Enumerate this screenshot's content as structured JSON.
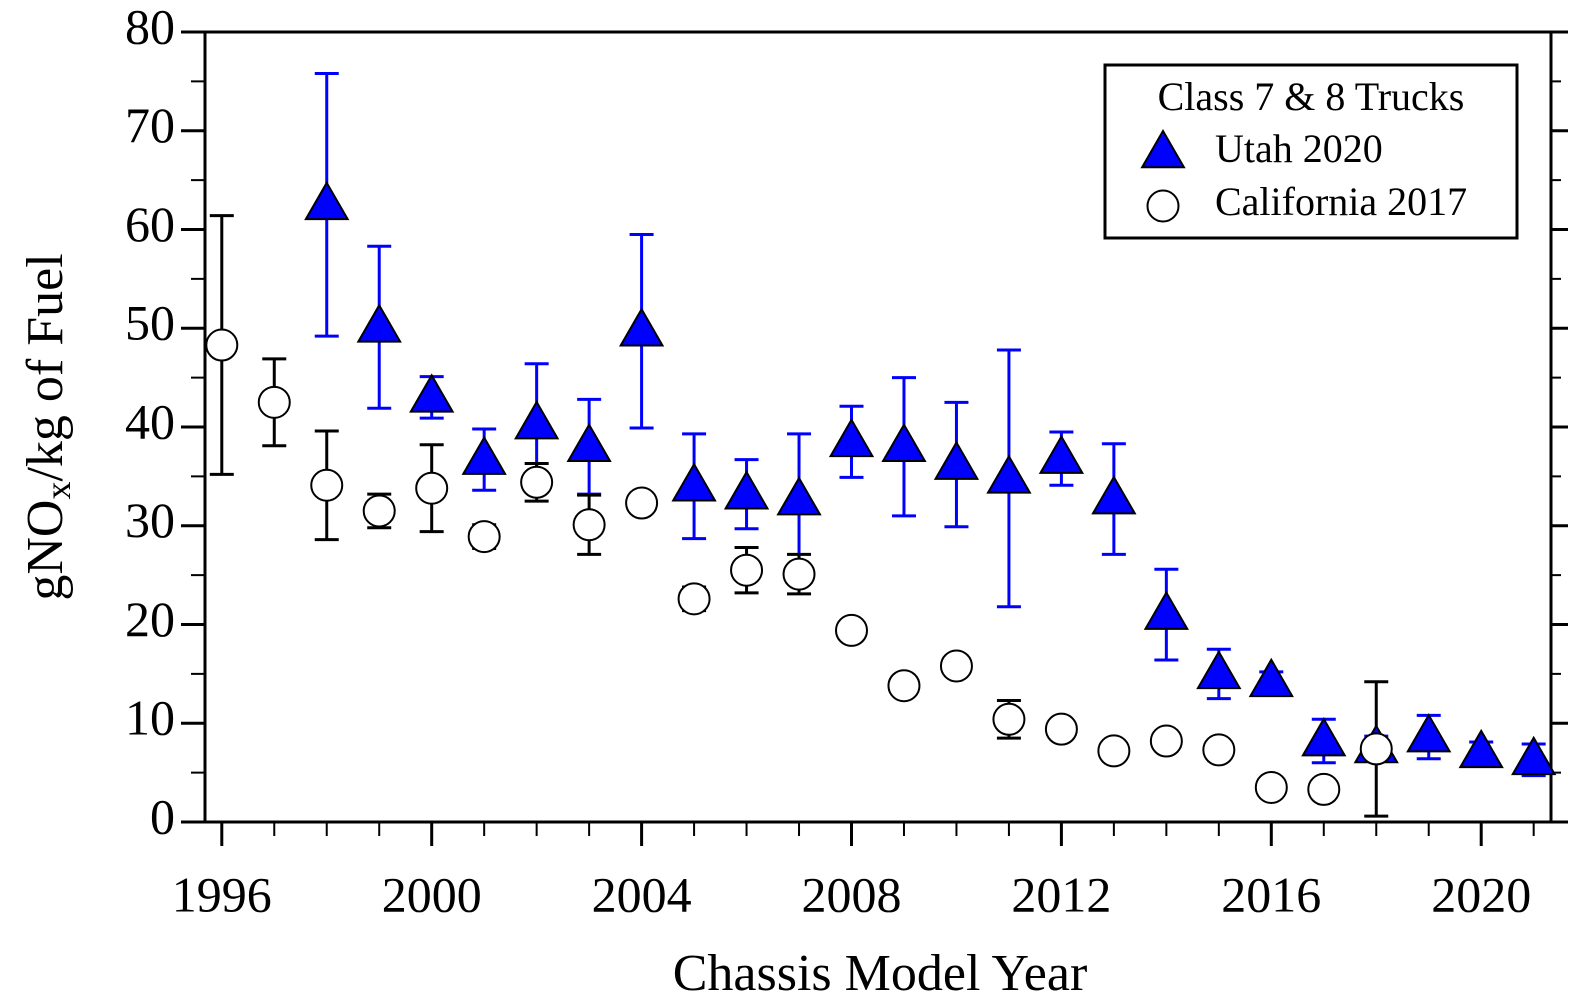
{
  "chart_data": {
    "type": "scatter",
    "x_label": "Chassis Model Year",
    "y_label": "gNOx/kg of Fuel",
    "legend_title": "Class 7 & 8 Trucks",
    "legend": "upper right",
    "xlim": [
      1995.68,
      2021.33
    ],
    "ylim": [
      0,
      80
    ],
    "xticks": [
      1996,
      2000,
      2004,
      2008,
      2012,
      2016,
      2020
    ],
    "xminorticks": [
      1997,
      1998,
      1999,
      2001,
      2002,
      2003,
      2005,
      2006,
      2007,
      2009,
      2010,
      2011,
      2013,
      2014,
      2015,
      2017,
      2018,
      2019,
      2021
    ],
    "yticks": [
      0,
      10,
      20,
      30,
      40,
      50,
      60,
      70,
      80
    ],
    "yminorticks": [
      5,
      15,
      25,
      35,
      45,
      55,
      65,
      75
    ],
    "series": [
      {
        "name": "Utah 2020",
        "marker": "triangle",
        "color": "#0000ff",
        "error_color": "#0000ff",
        "x": [
          1998,
          1999,
          2000,
          2001,
          2002,
          2003,
          2004,
          2005,
          2006,
          2007,
          2008,
          2009,
          2010,
          2011,
          2012,
          2013,
          2014,
          2015,
          2016,
          2017,
          2018,
          2019,
          2020,
          2021
        ],
        "values": [
          62.5,
          50.1,
          43,
          36.7,
          40.3,
          38,
          49.7,
          34,
          33.2,
          32.6,
          38.5,
          38,
          36.2,
          34.8,
          36.8,
          32.7,
          21,
          15,
          14.2,
          8.2,
          7.5,
          8.6,
          7,
          6.3
        ],
        "errors": [
          13.3,
          8.2,
          2.1,
          3.1,
          6.1,
          4.8,
          9.8,
          5.3,
          3.5,
          6.7,
          3.6,
          7,
          6.3,
          13,
          2.7,
          5.6,
          4.6,
          2.5,
          1,
          2.2,
          1.2,
          2.2,
          1.1,
          1.6
        ]
      },
      {
        "name": "California 2017",
        "marker": "circle",
        "color": "#ffffff",
        "error_color": "#000000",
        "x": [
          1996,
          1997,
          1998,
          1999,
          2000,
          2001,
          2002,
          2003,
          2004,
          2005,
          2006,
          2007,
          2008,
          2009,
          2010,
          2011,
          2012,
          2013,
          2014,
          2015,
          2016,
          2017,
          2018
        ],
        "values": [
          48.3,
          42.5,
          34.1,
          31.5,
          33.8,
          28.9,
          34.4,
          30.1,
          32.3,
          22.6,
          25.5,
          25.1,
          19.4,
          13.8,
          15.8,
          10.4,
          9.4,
          7.2,
          8.2,
          7.3,
          3.5,
          3.3,
          7.4
        ],
        "errors": [
          13.1,
          4.4,
          5.5,
          1.7,
          4.4,
          1.2,
          1.9,
          3,
          null,
          1.2,
          2.3,
          2,
          null,
          null,
          null,
          1.9,
          null,
          null,
          null,
          null,
          null,
          null,
          6.8
        ]
      }
    ]
  }
}
